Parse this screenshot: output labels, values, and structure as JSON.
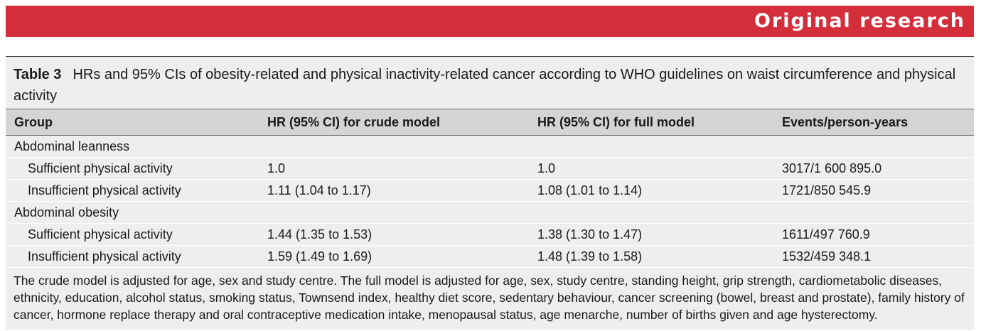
{
  "banner": {
    "title": "Original research"
  },
  "table": {
    "label": "Table 3",
    "caption": "HRs and 95% CIs of obesity-related and physical inactivity-related cancer according to WHO guidelines on waist circumference and physical activity",
    "headers": [
      "Group",
      "HR (95% CI) for crude model",
      "HR (95% CI) for full model",
      "Events/person-years"
    ],
    "groups": [
      {
        "name": "Abdominal leanness",
        "rows": [
          [
            "Sufficient physical activity",
            "1.0",
            "1.0",
            "3017/1 600 895.0"
          ],
          [
            "Insufficient physical activity",
            "1.11 (1.04 to 1.17)",
            "1.08 (1.01 to 1.14)",
            "1721/850 545.9"
          ]
        ]
      },
      {
        "name": "Abdominal obesity",
        "rows": [
          [
            "Sufficient physical activity",
            "1.44 (1.35 to 1.53)",
            "1.38 (1.30 to 1.47)",
            "1611/497 760.9"
          ],
          [
            "Insufficient physical activity",
            "1.59 (1.49 to 1.69)",
            "1.48 (1.39 to 1.58)",
            "1532/459 348.1"
          ]
        ]
      }
    ],
    "footnote": "The crude model is adjusted for age, sex and study centre. The full model is adjusted for age, sex, study centre, standing height, grip strength, cardiometabolic diseases, ethnicity, education, alcohol status, smoking status, Townsend index, healthy diet score, sedentary behaviour, cancer screening (bowel, breast and prostate), family history of cancer, hormone replace therapy and oral contraceptive medication intake, menopausal status, age menarche, number of births given and age hysterectomy."
  },
  "colors": {
    "banner": "#d42e3a",
    "table_bg": "#eeeeee",
    "header_bg": "#d4d4d4"
  }
}
